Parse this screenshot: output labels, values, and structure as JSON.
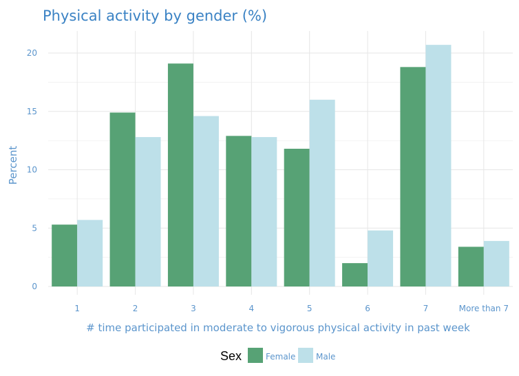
{
  "chart_data": {
    "type": "bar",
    "title": "Physical activity by gender (%)",
    "xlabel": "# time participated in moderate to vigorous physical activity in past week",
    "ylabel": "Percent",
    "categories": [
      "1",
      "2",
      "3",
      "4",
      "5",
      "6",
      "7",
      "More than 7"
    ],
    "series": [
      {
        "name": "Female",
        "color": "#57a275",
        "values": [
          5.3,
          14.9,
          19.1,
          12.9,
          11.8,
          2.0,
          18.8,
          3.4
        ]
      },
      {
        "name": "Male",
        "color": "#bde0e9",
        "values": [
          5.7,
          12.8,
          14.6,
          12.8,
          16.0,
          4.8,
          20.7,
          3.9
        ]
      }
    ],
    "ylim": [
      0,
      21.5
    ],
    "yticks": [
      0,
      5,
      10,
      15,
      20
    ],
    "grid": true,
    "legend": {
      "title": "Sex",
      "position": "bottom"
    }
  },
  "colors": {
    "title": "#3a82c4",
    "axis_text": "#5b95cc",
    "gridline": "#e6e6e6",
    "legend_title": "#000000"
  }
}
